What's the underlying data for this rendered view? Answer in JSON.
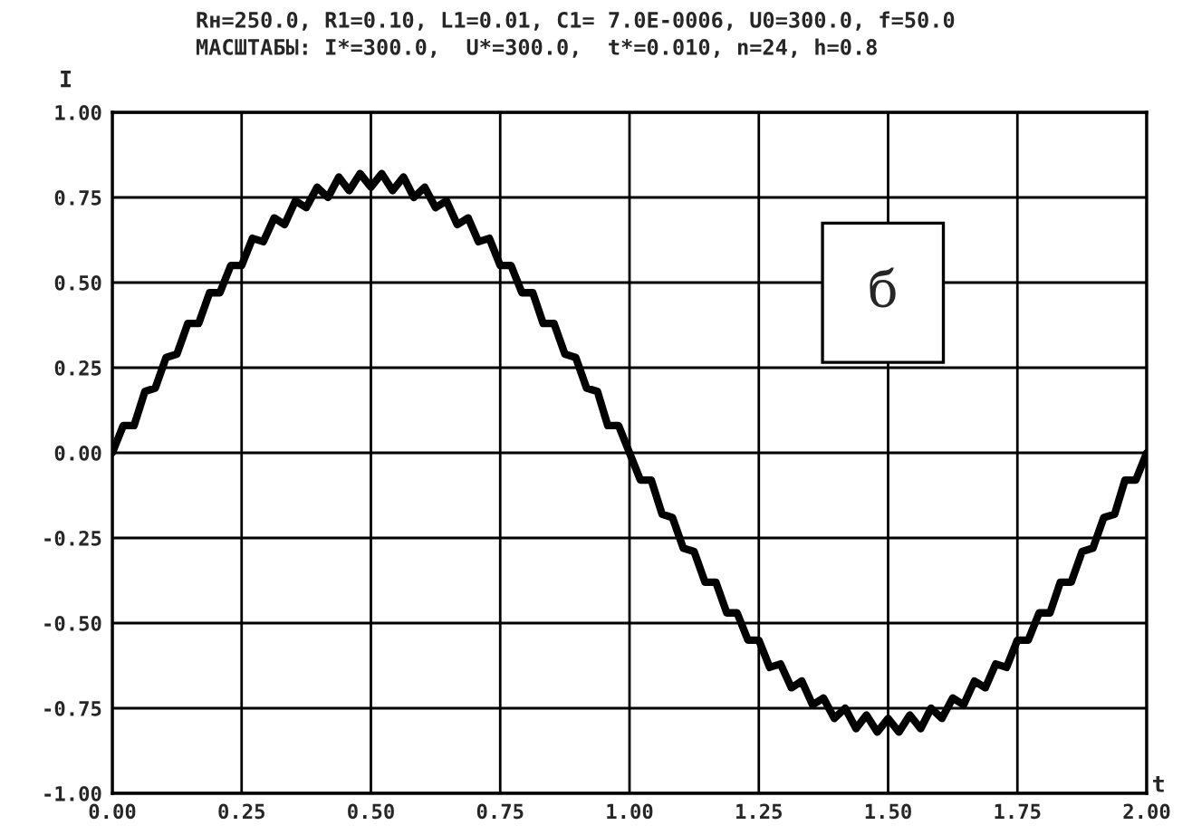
{
  "chart_data": {
    "type": "line",
    "title": "Rн=250.0, R1=0.10, L1=0.01, C1= 7.0E-0006, U0=300.0, f=50.0",
    "subtitle": "МАСШТАБЫ: I*=300.0,  U*=300.0,  t*=0.010, n=24, h=0.8",
    "xlabel": "t",
    "ylabel": "I",
    "annotations": [
      "б"
    ],
    "x": [
      0,
      0.021,
      0.042,
      0.063,
      0.083,
      0.104,
      0.125,
      0.146,
      0.167,
      0.188,
      0.208,
      0.229,
      0.25,
      0.271,
      0.292,
      0.313,
      0.333,
      0.354,
      0.375,
      0.396,
      0.417,
      0.438,
      0.458,
      0.479,
      0.5,
      0.521,
      0.542,
      0.563,
      0.583,
      0.604,
      0.625,
      0.646,
      0.667,
      0.688,
      0.708,
      0.729,
      0.75,
      0.771,
      0.792,
      0.813,
      0.833,
      0.854,
      0.875,
      0.896,
      0.917,
      0.938,
      0.958,
      0.979,
      1.0,
      1.021,
      1.042,
      1.063,
      1.083,
      1.104,
      1.125,
      1.146,
      1.167,
      1.188,
      1.208,
      1.229,
      1.25,
      1.271,
      1.292,
      1.313,
      1.333,
      1.354,
      1.375,
      1.396,
      1.417,
      1.438,
      1.458,
      1.479,
      1.5,
      1.521,
      1.542,
      1.563,
      1.583,
      1.604,
      1.625,
      1.646,
      1.667,
      1.688,
      1.708,
      1.729,
      1.75,
      1.771,
      1.792,
      1.813,
      1.833,
      1.854,
      1.875,
      1.896,
      1.917,
      1.938,
      1.958,
      1.979,
      2.0
    ],
    "series": [
      {
        "color": "#000000",
        "values": [
          0.0,
          0.08,
          0.08,
          0.18,
          0.19,
          0.28,
          0.29,
          0.38,
          0.38,
          0.47,
          0.47,
          0.55,
          0.55,
          0.63,
          0.62,
          0.69,
          0.67,
          0.74,
          0.72,
          0.78,
          0.75,
          0.81,
          0.77,
          0.82,
          0.78,
          0.82,
          0.77,
          0.81,
          0.75,
          0.78,
          0.72,
          0.74,
          0.67,
          0.69,
          0.62,
          0.63,
          0.55,
          0.55,
          0.47,
          0.47,
          0.38,
          0.38,
          0.29,
          0.28,
          0.19,
          0.18,
          0.08,
          0.08,
          0.0,
          -0.08,
          -0.08,
          -0.18,
          -0.19,
          -0.28,
          -0.29,
          -0.38,
          -0.38,
          -0.47,
          -0.47,
          -0.55,
          -0.55,
          -0.63,
          -0.62,
          -0.69,
          -0.67,
          -0.74,
          -0.72,
          -0.78,
          -0.75,
          -0.81,
          -0.77,
          -0.82,
          -0.78,
          -0.82,
          -0.77,
          -0.81,
          -0.75,
          -0.78,
          -0.72,
          -0.74,
          -0.67,
          -0.69,
          -0.62,
          -0.63,
          -0.55,
          -0.55,
          -0.47,
          -0.47,
          -0.38,
          -0.38,
          -0.29,
          -0.28,
          -0.19,
          -0.18,
          -0.08,
          -0.08,
          0.0
        ]
      }
    ],
    "xlim": [
      0,
      2
    ],
    "ylim": [
      -1,
      1
    ],
    "xticks": [
      {
        "value": 0,
        "label": "0.00"
      },
      {
        "value": 0.25,
        "label": "0.25"
      },
      {
        "value": 0.5,
        "label": "0.50"
      },
      {
        "value": 0.75,
        "label": "0.75"
      },
      {
        "value": 1,
        "label": "1.00"
      },
      {
        "value": 1.25,
        "label": "1.25"
      },
      {
        "value": 1.5,
        "label": "1.50"
      },
      {
        "value": 1.75,
        "label": "1.75"
      },
      {
        "value": 2,
        "label": "2.00"
      }
    ],
    "yticks": [
      {
        "value": -1,
        "label": "-1.00"
      },
      {
        "value": -0.75,
        "label": "-0.75"
      },
      {
        "value": -0.5,
        "label": "-0.50"
      },
      {
        "value": -0.25,
        "label": "-0.25"
      },
      {
        "value": 0,
        "label": "0.00"
      },
      {
        "value": 0.25,
        "label": "0.25"
      },
      {
        "value": 0.5,
        "label": "0.50"
      },
      {
        "value": 0.75,
        "label": "0.75"
      },
      {
        "value": 1,
        "label": "1.00"
      }
    ],
    "grid": true,
    "legend": false
  }
}
